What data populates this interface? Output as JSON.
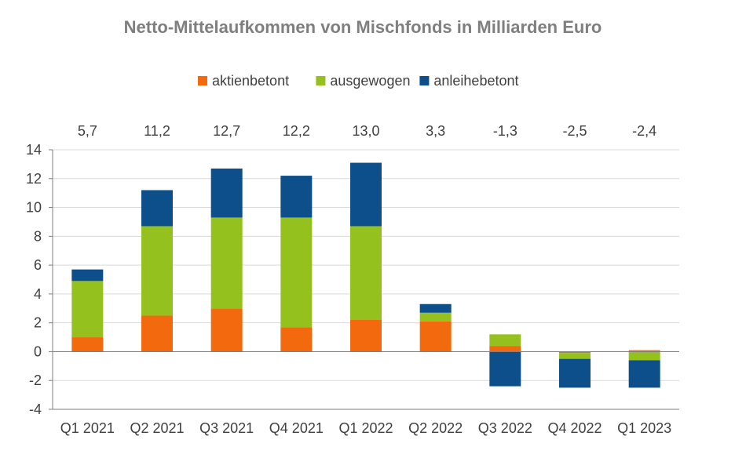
{
  "chart_data": {
    "type": "bar",
    "stacked": true,
    "title": "Netto-Mittelaufkommen von Mischfonds in Milliarden Euro",
    "xlabel": "",
    "ylabel": "",
    "ylim": [
      -4,
      14
    ],
    "yticks": [
      -4,
      -2,
      0,
      2,
      4,
      6,
      8,
      10,
      12,
      14
    ],
    "ytick_labels": [
      "-4",
      "-2",
      "0",
      "2",
      "4",
      "6",
      "8",
      "10",
      "12",
      "14"
    ],
    "grid": true,
    "legend_position": "top",
    "categories": [
      "Q1 2021",
      "Q2 2021",
      "Q3 2021",
      "Q4 2021",
      "Q1 2022",
      "Q2 2022",
      "Q3 2022",
      "Q4 2022",
      "Q1 2023"
    ],
    "totals": [
      "5,7",
      "11,2",
      "12,7",
      "12,2",
      "13,0",
      "3,3",
      "-1,3",
      "-2,5",
      "-2,4"
    ],
    "series": [
      {
        "name": "aktienbetont",
        "color": "#f26a0d",
        "values": [
          1.0,
          2.5,
          3.0,
          1.7,
          2.2,
          2.1,
          0.4,
          -0.1,
          0.1
        ]
      },
      {
        "name": "ausgewogen",
        "color": "#95c11f",
        "values": [
          3.9,
          6.2,
          6.3,
          7.6,
          6.5,
          0.6,
          0.8,
          -0.4,
          -0.6
        ]
      },
      {
        "name": "anleihebetont",
        "color": "#0d4f8b",
        "values": [
          0.8,
          2.5,
          3.4,
          2.9,
          4.4,
          0.6,
          -2.4,
          -2.0,
          -1.9
        ]
      }
    ]
  }
}
